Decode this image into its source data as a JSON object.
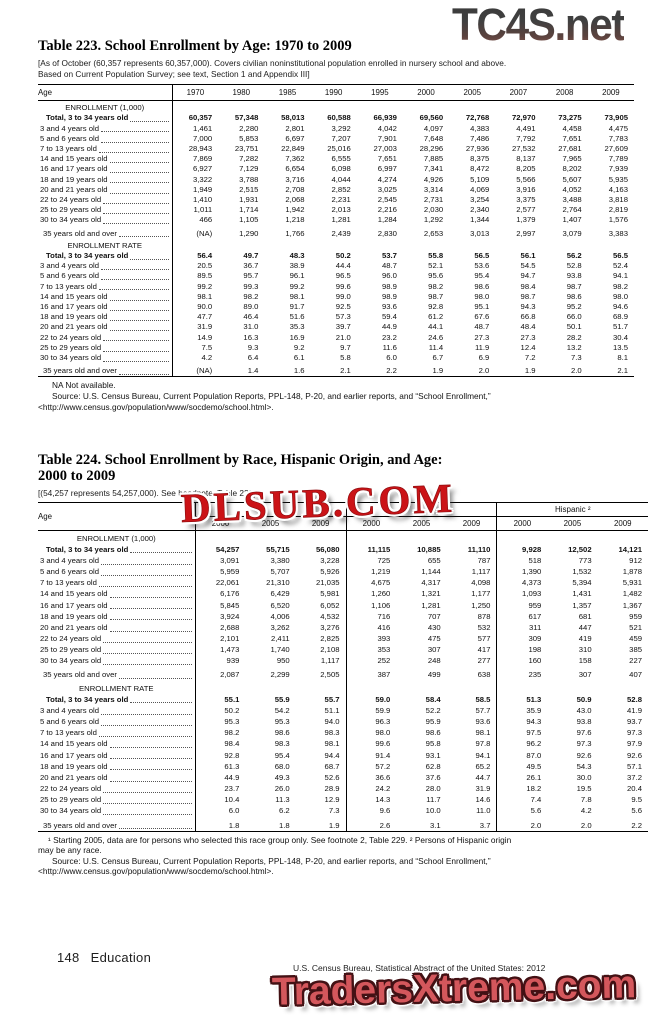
{
  "watermarks": {
    "top": "TC4S.net",
    "middle": "DLSUB.COM",
    "bottom": "TradersXtreme.com"
  },
  "footer": {
    "page_number": "148",
    "section": "Education",
    "source_line": "U.S. Census Bureau, Statistical Abstract of the United States: 2012"
  },
  "table223": {
    "title": "Table 223. School Enrollment by Age: 1970 to 2009",
    "headnote_lines": [
      "[As of October (60,357 represents 60,357,000). Covers civilian noninstitutional population enrolled in nursery school and above.",
      "Based on Current Population Survey; see text, Section 1 and Appendix III]"
    ],
    "stub_header": "Age",
    "columns": [
      "1970",
      "1980",
      "1985",
      "1990",
      "1995",
      "2000",
      "2005",
      "2007",
      "2008",
      "2009"
    ],
    "sections": [
      {
        "header": "ENROLLMENT (1,000)",
        "rows": [
          {
            "label": "Total, 3 to 34 years old",
            "bold": true,
            "values": [
              "60,357",
              "57,348",
              "58,013",
              "60,588",
              "66,939",
              "69,560",
              "72,768",
              "72,970",
              "73,275",
              "73,905"
            ]
          },
          {
            "label": "3 and 4 years old",
            "values": [
              "1,461",
              "2,280",
              "2,801",
              "3,292",
              "4,042",
              "4,097",
              "4,383",
              "4,491",
              "4,458",
              "4,475"
            ]
          },
          {
            "label": "5 and 6 years old",
            "values": [
              "7,000",
              "5,853",
              "6,697",
              "7,207",
              "7,901",
              "7,648",
              "7,486",
              "7,792",
              "7,651",
              "7,783"
            ]
          },
          {
            "label": "7 to 13 years old",
            "values": [
              "28,943",
              "23,751",
              "22,849",
              "25,016",
              "27,003",
              "28,296",
              "27,936",
              "27,532",
              "27,681",
              "27,609"
            ]
          },
          {
            "label": "14 and 15 years old",
            "values": [
              "7,869",
              "7,282",
              "7,362",
              "6,555",
              "7,651",
              "7,885",
              "8,375",
              "8,137",
              "7,965",
              "7,789"
            ]
          },
          {
            "label": "16 and 17 years old",
            "values": [
              "6,927",
              "7,129",
              "6,654",
              "6,098",
              "6,997",
              "7,341",
              "8,472",
              "8,205",
              "8,202",
              "7,939"
            ]
          },
          {
            "label": "18 and 19 years old",
            "values": [
              "3,322",
              "3,788",
              "3,716",
              "4,044",
              "4,274",
              "4,926",
              "5,109",
              "5,566",
              "5,607",
              "5,935"
            ]
          },
          {
            "label": "20 and 21 years old",
            "values": [
              "1,949",
              "2,515",
              "2,708",
              "2,852",
              "3,025",
              "3,314",
              "4,069",
              "3,916",
              "4,052",
              "4,163"
            ]
          },
          {
            "label": "22 to 24 years old",
            "values": [
              "1,410",
              "1,931",
              "2,068",
              "2,231",
              "2,545",
              "2,731",
              "3,254",
              "3,375",
              "3,488",
              "3,818"
            ]
          },
          {
            "label": "25 to 29 years old",
            "values": [
              "1,011",
              "1,714",
              "1,942",
              "2,013",
              "2,216",
              "2,030",
              "2,340",
              "2,577",
              "2,764",
              "2,819"
            ]
          },
          {
            "label": "30 to 34 years old",
            "values": [
              "466",
              "1,105",
              "1,218",
              "1,281",
              "1,284",
              "1,292",
              "1,344",
              "1,379",
              "1,407",
              "1,576"
            ]
          },
          {
            "label": "35 years old and over",
            "gap": true,
            "values": [
              "(NA)",
              "1,290",
              "1,766",
              "2,439",
              "2,830",
              "2,653",
              "3,013",
              "2,997",
              "3,079",
              "3,383"
            ]
          }
        ]
      },
      {
        "header": "ENROLLMENT RATE",
        "rows": [
          {
            "label": "Total, 3 to 34 years old",
            "bold": true,
            "values": [
              "56.4",
              "49.7",
              "48.3",
              "50.2",
              "53.7",
              "55.8",
              "56.5",
              "56.1",
              "56.2",
              "56.5"
            ]
          },
          {
            "label": "3 and 4 years old",
            "values": [
              "20.5",
              "36.7",
              "38.9",
              "44.4",
              "48.7",
              "52.1",
              "53.6",
              "54.5",
              "52.8",
              "52.4"
            ]
          },
          {
            "label": "5 and 6 years old",
            "values": [
              "89.5",
              "95.7",
              "96.1",
              "96.5",
              "96.0",
              "95.6",
              "95.4",
              "94.7",
              "93.8",
              "94.1"
            ]
          },
          {
            "label": "7 to 13 years old",
            "values": [
              "99.2",
              "99.3",
              "99.2",
              "99.6",
              "98.9",
              "98.2",
              "98.6",
              "98.4",
              "98.7",
              "98.2"
            ]
          },
          {
            "label": "14 and 15 years old",
            "values": [
              "98.1",
              "98.2",
              "98.1",
              "99.0",
              "98.9",
              "98.7",
              "98.0",
              "98.7",
              "98.6",
              "98.0"
            ]
          },
          {
            "label": "16 and 17 years old",
            "values": [
              "90.0",
              "89.0",
              "91.7",
              "92.5",
              "93.6",
              "92.8",
              "95.1",
              "94.3",
              "95.2",
              "94.6"
            ]
          },
          {
            "label": "18 and 19 years old",
            "values": [
              "47.7",
              "46.4",
              "51.6",
              "57.3",
              "59.4",
              "61.2",
              "67.6",
              "66.8",
              "66.0",
              "68.9"
            ]
          },
          {
            "label": "20 and 21 years old",
            "values": [
              "31.9",
              "31.0",
              "35.3",
              "39.7",
              "44.9",
              "44.1",
              "48.7",
              "48.4",
              "50.1",
              "51.7"
            ]
          },
          {
            "label": "22 to 24 years old",
            "values": [
              "14.9",
              "16.3",
              "16.9",
              "21.0",
              "23.2",
              "24.6",
              "27.3",
              "27.3",
              "28.2",
              "30.4"
            ]
          },
          {
            "label": "25 to 29 years old",
            "values": [
              "7.5",
              "9.3",
              "9.2",
              "9.7",
              "11.6",
              "11.4",
              "11.9",
              "12.4",
              "13.2",
              "13.5"
            ]
          },
          {
            "label": "30 to 34 years old",
            "values": [
              "4.2",
              "6.4",
              "6.1",
              "5.8",
              "6.0",
              "6.7",
              "6.9",
              "7.2",
              "7.3",
              "8.1"
            ]
          },
          {
            "label": "35 years old and over",
            "gap": true,
            "values": [
              "(NA)",
              "1.4",
              "1.6",
              "2.1",
              "2.2",
              "1.9",
              "2.0",
              "1.9",
              "2.0",
              "2.1"
            ]
          }
        ]
      }
    ],
    "na_note": "NA Not available.",
    "source_lines": [
      "Source: U.S. Census Bureau, Current Population Reports, PPL-148, P-20, and earlier reports, and “School Enrollment,”",
      "<http://www.census.gov/population/www/socdemo/school.html>."
    ]
  },
  "table224": {
    "title_lines": [
      "Table 224. School Enrollment by Race, Hispanic Origin, and Age:",
      "2000 to 2009"
    ],
    "headnote": "[(54,257 represents 54,257,000). See headnote, Table 223]",
    "stub_header": "Age",
    "groups": [
      {
        "label": "",
        "years": [
          "2000",
          "2005",
          "2009"
        ]
      },
      {
        "label": "",
        "years": [
          "2000",
          "2005",
          "2009"
        ]
      },
      {
        "label": "Hispanic ²",
        "years": [
          "2000",
          "2005",
          "2009"
        ]
      }
    ],
    "sections": [
      {
        "header": "ENROLLMENT (1,000)",
        "rows": [
          {
            "label": "Total, 3 to 34 years old",
            "bold": true,
            "values": [
              "54,257",
              "55,715",
              "56,080",
              "11,115",
              "10,885",
              "11,110",
              "9,928",
              "12,502",
              "14,121"
            ]
          },
          {
            "label": "3 and 4 years old",
            "values": [
              "3,091",
              "3,380",
              "3,228",
              "725",
              "655",
              "787",
              "518",
              "773",
              "912"
            ]
          },
          {
            "label": "5 and 6 years old",
            "values": [
              "5,959",
              "5,707",
              "5,926",
              "1,219",
              "1,144",
              "1,117",
              "1,390",
              "1,532",
              "1,878"
            ]
          },
          {
            "label": "7 to 13 years old",
            "values": [
              "22,061",
              "21,310",
              "21,035",
              "4,675",
              "4,317",
              "4,098",
              "4,373",
              "5,394",
              "5,931"
            ]
          },
          {
            "label": "14 and 15 years old",
            "values": [
              "6,176",
              "6,429",
              "5,981",
              "1,260",
              "1,321",
              "1,177",
              "1,093",
              "1,431",
              "1,482"
            ]
          },
          {
            "label": "16 and 17 years old",
            "values": [
              "5,845",
              "6,520",
              "6,052",
              "1,106",
              "1,281",
              "1,250",
              "959",
              "1,357",
              "1,367"
            ]
          },
          {
            "label": "18 and 19 years old",
            "values": [
              "3,924",
              "4,006",
              "4,532",
              "716",
              "707",
              "878",
              "617",
              "681",
              "959"
            ]
          },
          {
            "label": "20 and 21 years old",
            "values": [
              "2,688",
              "3,262",
              "3,276",
              "416",
              "430",
              "532",
              "311",
              "447",
              "521"
            ]
          },
          {
            "label": "22 to 24 years old",
            "values": [
              "2,101",
              "2,411",
              "2,825",
              "393",
              "475",
              "577",
              "309",
              "419",
              "459"
            ]
          },
          {
            "label": "25 to 29 years old",
            "values": [
              "1,473",
              "1,740",
              "2,108",
              "353",
              "307",
              "417",
              "198",
              "310",
              "385"
            ]
          },
          {
            "label": "30 to 34 years old",
            "values": [
              "939",
              "950",
              "1,117",
              "252",
              "248",
              "277",
              "160",
              "158",
              "227"
            ]
          },
          {
            "label": "35 years old and over",
            "gap": true,
            "values": [
              "2,087",
              "2,299",
              "2,505",
              "387",
              "499",
              "638",
              "235",
              "307",
              "407"
            ]
          }
        ]
      },
      {
        "header": "ENROLLMENT RATE",
        "rows": [
          {
            "label": "Total, 3 to 34 years old",
            "bold": true,
            "values": [
              "55.1",
              "55.9",
              "55.7",
              "59.0",
              "58.4",
              "58.5",
              "51.3",
              "50.9",
              "52.8"
            ]
          },
          {
            "label": "3 and 4 years old",
            "values": [
              "50.2",
              "54.2",
              "51.1",
              "59.9",
              "52.2",
              "57.7",
              "35.9",
              "43.0",
              "41.9"
            ]
          },
          {
            "label": "5 and 6 years old",
            "values": [
              "95.3",
              "95.3",
              "94.0",
              "96.3",
              "95.9",
              "93.6",
              "94.3",
              "93.8",
              "93.7"
            ]
          },
          {
            "label": "7 to 13 years old",
            "values": [
              "98.2",
              "98.6",
              "98.3",
              "98.0",
              "98.6",
              "98.1",
              "97.5",
              "97.6",
              "97.3"
            ]
          },
          {
            "label": "14 and 15 years old",
            "values": [
              "98.4",
              "98.3",
              "98.1",
              "99.6",
              "95.8",
              "97.8",
              "96.2",
              "97.3",
              "97.9"
            ]
          },
          {
            "label": "16 and 17 years old",
            "values": [
              "92.8",
              "95.4",
              "94.4",
              "91.4",
              "93.1",
              "94.1",
              "87.0",
              "92.6",
              "92.6"
            ]
          },
          {
            "label": "18 and 19 years old",
            "values": [
              "61.3",
              "68.0",
              "68.7",
              "57.2",
              "62.8",
              "65.2",
              "49.5",
              "54.3",
              "57.1"
            ]
          },
          {
            "label": "20 and 21 years old",
            "values": [
              "44.9",
              "49.3",
              "52.6",
              "36.6",
              "37.6",
              "44.7",
              "26.1",
              "30.0",
              "37.2"
            ]
          },
          {
            "label": "22 to 24 years old",
            "values": [
              "23.7",
              "26.0",
              "28.9",
              "24.2",
              "28.0",
              "31.9",
              "18.2",
              "19.5",
              "20.4"
            ]
          },
          {
            "label": "25 to 29 years old",
            "values": [
              "10.4",
              "11.3",
              "12.9",
              "14.3",
              "11.7",
              "14.6",
              "7.4",
              "7.8",
              "9.5"
            ]
          },
          {
            "label": "30 to 34 years old",
            "values": [
              "6.0",
              "6.2",
              "7.3",
              "9.6",
              "10.0",
              "11.0",
              "5.6",
              "4.2",
              "5.6"
            ]
          },
          {
            "label": "35 years old and over",
            "gap": true,
            "values": [
              "1.8",
              "1.8",
              "1.9",
              "2.6",
              "3.1",
              "3.7",
              "2.0",
              "2.0",
              "2.2"
            ]
          }
        ]
      }
    ],
    "footnote_lines": [
      "¹ Starting 2005, data are for persons who selected this race group only. See footnote 2, Table 229. ² Persons of Hispanic origin",
      "may be any race."
    ],
    "source_lines": [
      "Source: U.S. Census Bureau, Current Population Reports, PPL-148, P-20, and earlier reports, and “School Enrollment,”",
      "<http://www.census.gov/population/www/socdemo/school.html>."
    ]
  }
}
